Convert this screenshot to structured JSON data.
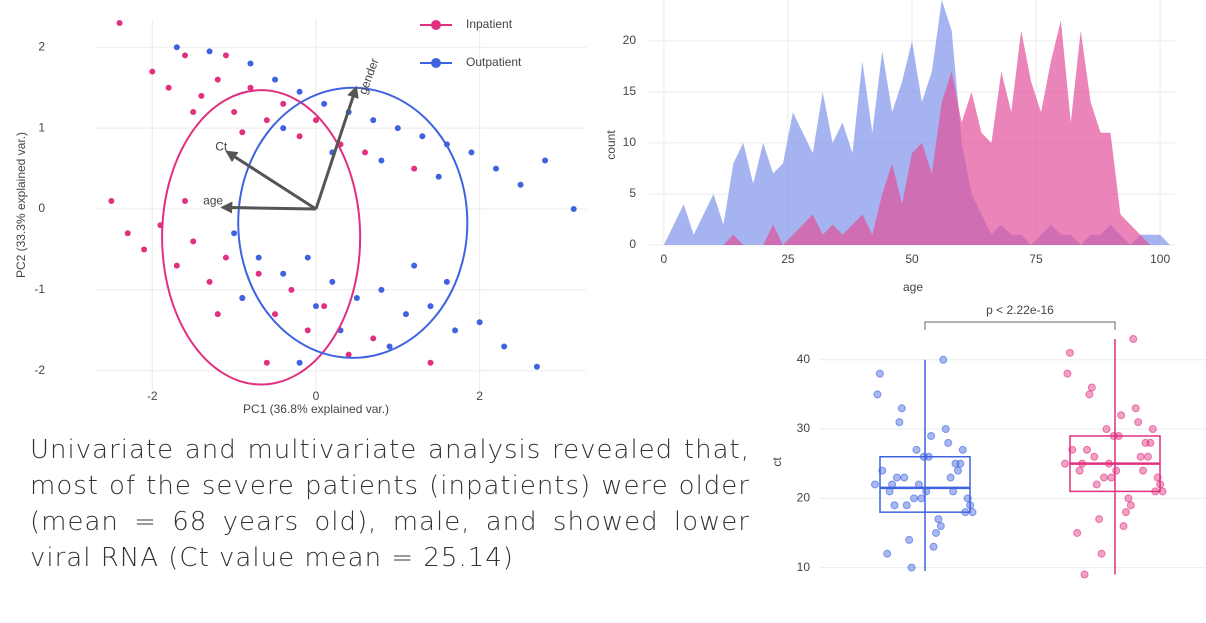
{
  "chart_data": [
    {
      "type": "scatter",
      "xlabel": "PC1 (36.8% explained var.)",
      "ylabel": "PC2 (33.3% explained var.)",
      "xlim": [
        -2.7,
        3.3
      ],
      "ylim": [
        -2.25,
        2.35
      ],
      "xticks": [
        -2,
        0,
        2
      ],
      "yticks": [
        -2,
        -1,
        0,
        1,
        2
      ],
      "grid": true,
      "legend": "top-right",
      "series": [
        {
          "name": "Inpatient",
          "color": "#e0307f",
          "x": [
            -2.0,
            -1.8,
            -1.6,
            -1.4,
            -1.2,
            -1.0,
            -0.8,
            -0.6,
            -0.4,
            -0.2,
            0.0,
            0.3,
            0.6,
            -1.5,
            -1.1,
            -2.4,
            -0.9,
            1.2,
            -2.5,
            -2.3,
            -2.1,
            -1.9,
            -1.7,
            -1.5,
            -1.3,
            -1.1,
            -0.9,
            -0.7,
            -0.5,
            -0.3,
            -0.1,
            0.1,
            0.4,
            -1.6,
            -1.2,
            0.7,
            1.4,
            -0.6
          ],
          "values": [
            1.7,
            1.5,
            1.9,
            1.4,
            1.6,
            1.2,
            1.5,
            1.1,
            1.3,
            0.9,
            1.1,
            0.8,
            0.7,
            1.2,
            1.9,
            2.3,
            0.95,
            0.5,
            0.1,
            -0.3,
            -0.5,
            -0.2,
            -0.7,
            -0.4,
            -0.9,
            -0.6,
            -1.1,
            -0.8,
            -1.3,
            -1.0,
            -1.5,
            -1.2,
            -1.8,
            0.1,
            -1.3,
            -1.6,
            -1.9,
            -1.9
          ],
          "ellipse": {
            "cx": -0.67,
            "cy": -0.35,
            "rx": 1.21,
            "ry": 1.82
          }
        },
        {
          "name": "Outpatient",
          "color": "#3f63e0",
          "x": [
            -1.7,
            -1.3,
            -0.8,
            -0.5,
            -0.2,
            0.1,
            0.4,
            0.7,
            1.0,
            1.3,
            1.6,
            1.9,
            2.2,
            2.5,
            0.8,
            1.5,
            0.2,
            -0.4,
            3.15,
            2.8,
            -1.0,
            -0.7,
            -0.4,
            -0.1,
            0.2,
            0.5,
            0.8,
            1.1,
            1.4,
            1.7,
            2.0,
            2.3,
            0.3,
            0.9,
            -0.2,
            1.6,
            2.7,
            0.0,
            1.2,
            -0.9
          ],
          "values": [
            2.0,
            1.95,
            1.8,
            1.6,
            1.45,
            1.3,
            1.2,
            1.1,
            1.0,
            0.9,
            0.8,
            0.7,
            0.5,
            0.3,
            0.6,
            0.4,
            0.7,
            1.0,
            0.0,
            0.6,
            -0.3,
            -0.6,
            -0.8,
            -0.6,
            -0.9,
            -1.1,
            -1.0,
            -1.3,
            -1.2,
            -1.5,
            -1.4,
            -1.7,
            -1.5,
            -1.7,
            -1.9,
            -0.9,
            -1.95,
            -1.2,
            -0.7,
            -1.1
          ],
          "ellipse": {
            "cx": 0.45,
            "cy": -0.17,
            "rx": 1.4,
            "ry": 1.67
          }
        }
      ],
      "loadings": [
        {
          "label": "age",
          "x": -1.11,
          "y": 0.02
        },
        {
          "label": "Ct",
          "x": -1.06,
          "y": 0.69
        },
        {
          "label": "gender",
          "x": 0.48,
          "y": 1.47
        }
      ]
    },
    {
      "type": "area",
      "xlabel": "age",
      "ylabel": "count",
      "xlim": [
        -3,
        103
      ],
      "ylim": [
        0,
        24
      ],
      "xticks": [
        0,
        25,
        50,
        75,
        100
      ],
      "yticks": [
        0,
        5,
        10,
        15,
        20
      ],
      "grid": true,
      "x": [
        0,
        2,
        4,
        6,
        8,
        10,
        12,
        14,
        16,
        18,
        20,
        22,
        24,
        26,
        28,
        30,
        32,
        34,
        36,
        38,
        40,
        42,
        44,
        46,
        48,
        50,
        52,
        54,
        56,
        58,
        60,
        62,
        64,
        66,
        68,
        70,
        72,
        74,
        76,
        78,
        80,
        82,
        84,
        86,
        88,
        90,
        92,
        94,
        96,
        98,
        100,
        102
      ],
      "series": [
        {
          "color": "#7f94ea",
          "values": [
            0,
            2,
            4,
            1,
            3,
            5,
            2,
            8,
            10,
            6,
            10,
            7,
            8,
            13,
            11,
            9,
            15,
            10,
            12,
            9,
            18,
            11,
            19,
            13,
            16,
            20,
            14,
            17,
            24,
            21,
            10,
            5,
            3,
            1,
            2,
            1,
            1,
            0,
            1,
            2,
            1,
            1,
            0,
            1,
            1,
            2,
            1,
            0,
            1,
            1,
            1,
            0
          ]
        },
        {
          "color": "#e2509a",
          "values": [
            0,
            0,
            0,
            0,
            0,
            0,
            0,
            1,
            0,
            0,
            0,
            2,
            0,
            1,
            2,
            3,
            1,
            2,
            1,
            2,
            3,
            1,
            5,
            8,
            4,
            9,
            10,
            7,
            14,
            17,
            12,
            15,
            11,
            10,
            17,
            13,
            21,
            16,
            13,
            18,
            22,
            12,
            21,
            14,
            11,
            11,
            3,
            2,
            1,
            0,
            0,
            0
          ]
        }
      ]
    },
    {
      "type": "box",
      "ylabel": "ct",
      "annotation": "p < 2.22e-16",
      "ylim": [
        2,
        44.3
      ],
      "yticks": [
        10,
        20,
        30,
        40
      ],
      "grid": true,
      "boxes": [
        {
          "color": "#3f63e0",
          "q1": 18,
          "median": 21.5,
          "q3": 26,
          "whisker_low": 9.5,
          "whisker_high": 40,
          "points": [
            22,
            18,
            25,
            30,
            15,
            21,
            27,
            19,
            23,
            12,
            35,
            20,
            24,
            28,
            17,
            26,
            22,
            14,
            31,
            21,
            38,
            19,
            25,
            23,
            16,
            29,
            20,
            10,
            33,
            22,
            24,
            18,
            27,
            21,
            40,
            13,
            26,
            20,
            23,
            19
          ]
        },
        {
          "color": "#e0307f",
          "q1": 21,
          "median": 25,
          "q3": 29,
          "whisker_low": 9,
          "whisker_high": 43,
          "points": [
            25,
            21,
            28,
            33,
            18,
            24,
            30,
            22,
            27,
            15,
            38,
            23,
            26,
            31,
            20,
            29,
            25,
            17,
            35,
            24,
            41,
            22,
            28,
            26,
            19,
            32,
            23,
            12,
            36,
            25,
            27,
            21,
            30,
            24,
            43,
            16,
            29,
            23,
            26,
            9
          ]
        }
      ]
    }
  ],
  "caption": "Univariate and multivariate analysis revealed that, most of the severe patients (inpatients) were older (mean = 68 years old), male, and showed lower viral RNA (Ct value mean = 25.14)"
}
